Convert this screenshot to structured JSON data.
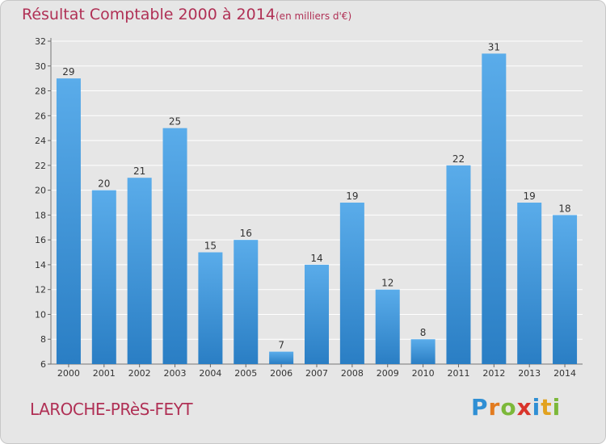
{
  "title": "Résultat Comptable 2000 à 2014",
  "subtitle": "(en milliers d'€)",
  "commune": "LAROCHE-PRèS-FEYT",
  "brand": {
    "text": "Proxiti",
    "letters": [
      {
        "ch": "P",
        "color": "#2f8fd4"
      },
      {
        "ch": "r",
        "color": "#e27b1f"
      },
      {
        "ch": "o",
        "color": "#7cb83a"
      },
      {
        "ch": "x",
        "color": "#d9342b"
      },
      {
        "ch": "i",
        "color": "#2f8fd4"
      },
      {
        "ch": "t",
        "color": "#e2a21f"
      },
      {
        "ch": "i",
        "color": "#7cb83a"
      }
    ]
  },
  "colors": {
    "bar_top": "#5aacea",
    "bar_bottom": "#2a7ec4",
    "title": "#b03055",
    "background": "#e6e6e6"
  },
  "chart_data": {
    "type": "bar",
    "categories": [
      "2000",
      "2001",
      "2002",
      "2003",
      "2004",
      "2005",
      "2006",
      "2007",
      "2008",
      "2009",
      "2010",
      "2011",
      "2012",
      "2013",
      "2014"
    ],
    "values": [
      29,
      20,
      21,
      25,
      15,
      16,
      7,
      14,
      19,
      12,
      8,
      22,
      31,
      19,
      18
    ],
    "ylim": [
      6,
      32
    ],
    "yticks": [
      6,
      8,
      10,
      12,
      14,
      16,
      18,
      20,
      22,
      24,
      26,
      28,
      30,
      32
    ],
    "grid": true,
    "title": "Résultat Comptable 2000 à 2014",
    "subtitle": "(en milliers d'€)"
  }
}
